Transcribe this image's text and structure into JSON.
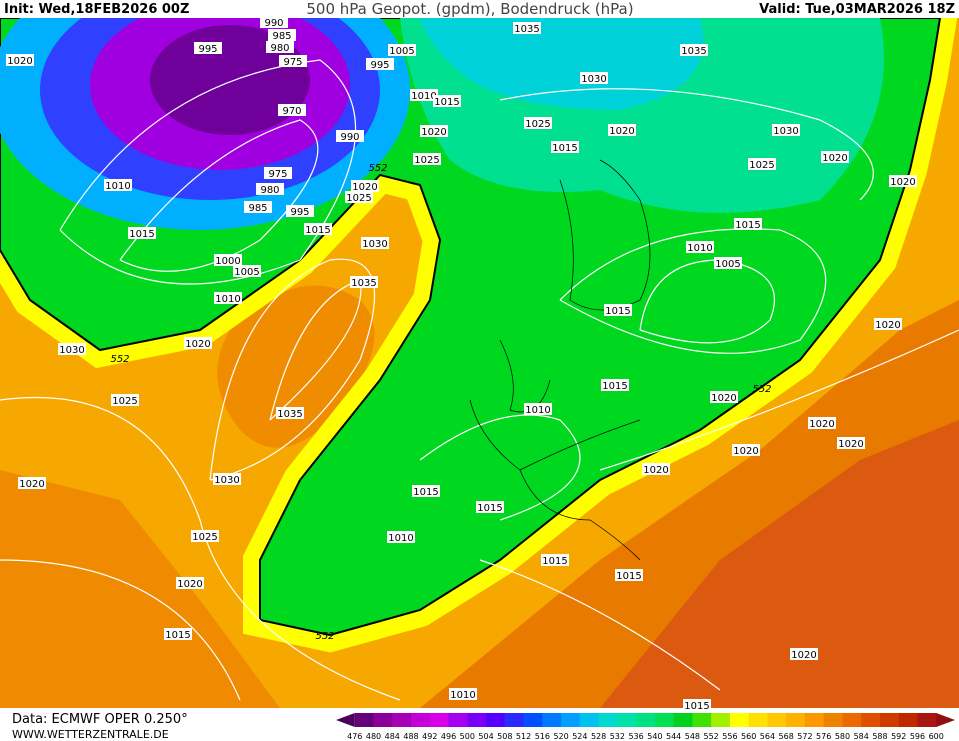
{
  "header": {
    "init": "Init: Wed,18FEB2026 00Z",
    "title": "500 hPa Geopot. (gpdm), Bodendruck (hPa)",
    "valid": "Valid: Tue,03MAR2026 18Z"
  },
  "map": {
    "pressure_labels": [
      "1020",
      "995",
      "990",
      "985",
      "980",
      "975",
      "1005",
      "995",
      "1035",
      "1035",
      "1030",
      "970",
      "1010",
      "1015",
      "1025",
      "1020",
      "1030",
      "990",
      "1020",
      "1015",
      "1025",
      "1020",
      "1010",
      "975",
      "1025",
      "1020",
      "980",
      "1025",
      "1020",
      "985",
      "995",
      "1015",
      "1015",
      "1015",
      "1030",
      "1010",
      "1000",
      "1005",
      "1005",
      "1035",
      "1010",
      "1015",
      "1020",
      "1030",
      "1020",
      "1015",
      "1025",
      "1010",
      "1035",
      "1020",
      "1020",
      "1020",
      "1020",
      "1020",
      "1030",
      "1015",
      "1020",
      "1015",
      "1025",
      "1010",
      "1015",
      "1015",
      "1020",
      "1015",
      "1020",
      "1010",
      "1015"
    ],
    "geopotential_labels": [
      "552",
      "552",
      "552",
      "552"
    ]
  },
  "footer": {
    "source": "Data: ECMWF OPER 0.250°",
    "site": "WWW.WETTERZENTRALE.DE"
  },
  "scale": {
    "labels": [
      476,
      480,
      484,
      488,
      492,
      496,
      500,
      504,
      508,
      512,
      516,
      520,
      524,
      528,
      532,
      536,
      540,
      544,
      548,
      552,
      556,
      560,
      564,
      568,
      572,
      576,
      580,
      584,
      588,
      592,
      596,
      600
    ],
    "colors": [
      "#4b0060",
      "#66007a",
      "#8a0099",
      "#a600b5",
      "#c400d4",
      "#d900e8",
      "#a500f0",
      "#7a00f5",
      "#5500ff",
      "#2a2aff",
      "#0050ff",
      "#0078ff",
      "#00a0ff",
      "#00c0f0",
      "#00d8d0",
      "#00e0a8",
      "#00e080",
      "#00e050",
      "#00d020",
      "#40e000",
      "#a0f000",
      "#ffff00",
      "#ffe000",
      "#ffc800",
      "#ffb000",
      "#ff9800",
      "#f08000",
      "#e86a00",
      "#e05000",
      "#d03c00",
      "#c02800",
      "#a81810",
      "#901010"
    ]
  }
}
